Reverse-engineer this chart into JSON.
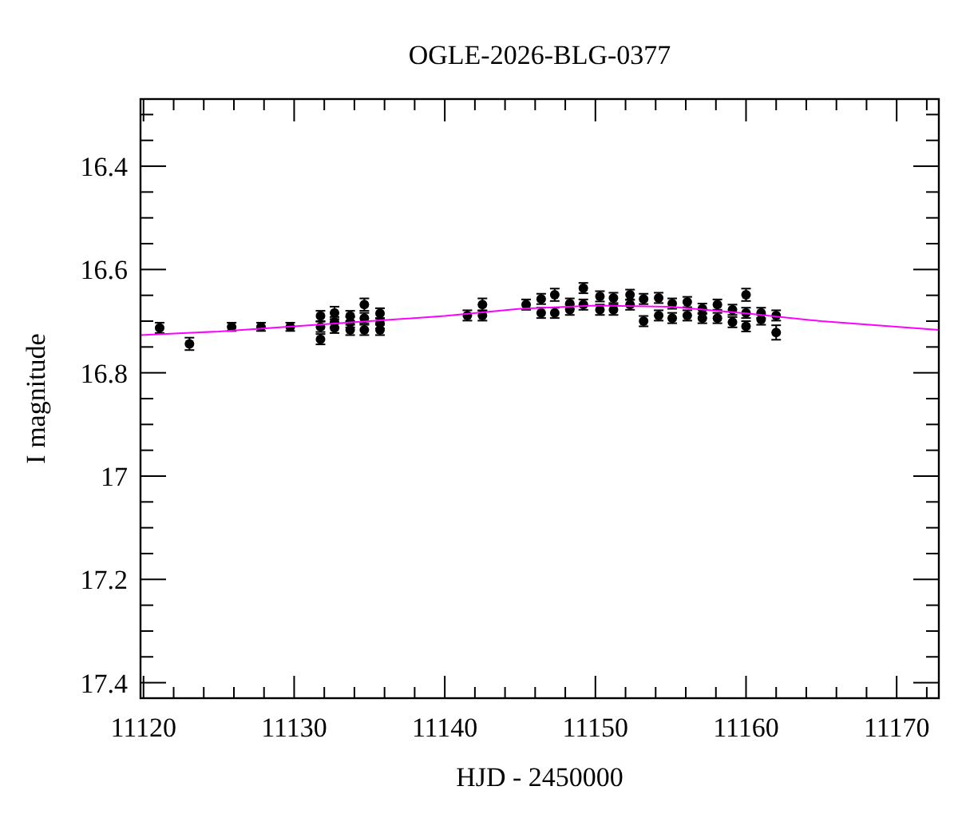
{
  "chart_data": {
    "type": "scatter",
    "title": "OGLE-2026-BLG-0377",
    "xlabel": "HJD - 2450000",
    "ylabel": "I magnitude",
    "xlim": [
      11119.8,
      11172.8
    ],
    "ylim": [
      17.43,
      16.27
    ],
    "xticks": [
      11120,
      {
        "value": 11122,
        "label": null
      },
      {
        "value": 11124,
        "label": null
      },
      {
        "value": 11126,
        "label": null
      },
      {
        "value": 11128,
        "label": null
      },
      11130,
      {
        "value": 11132,
        "label": null
      },
      {
        "value": 11134,
        "label": null
      },
      {
        "value": 11136,
        "label": null
      },
      {
        "value": 11138,
        "label": null
      },
      11140,
      {
        "value": 11142,
        "label": null
      },
      {
        "value": 11144,
        "label": null
      },
      {
        "value": 11146,
        "label": null
      },
      {
        "value": 11148,
        "label": null
      },
      11150,
      {
        "value": 11152,
        "label": null
      },
      {
        "value": 11154,
        "label": null
      },
      {
        "value": 11156,
        "label": null
      },
      {
        "value": 11158,
        "label": null
      },
      11160,
      {
        "value": 11162,
        "label": null
      },
      {
        "value": 11164,
        "label": null
      },
      {
        "value": 11166,
        "label": null
      },
      {
        "value": 11168,
        "label": null
      },
      11170,
      {
        "value": 11172,
        "label": null
      }
    ],
    "yticks": [
      {
        "value": 16.3,
        "label": null
      },
      {
        "value": 16.35,
        "label": null
      },
      16.4,
      {
        "value": 16.45,
        "label": null
      },
      {
        "value": 16.5,
        "label": null
      },
      {
        "value": 16.55,
        "label": null
      },
      16.6,
      {
        "value": 16.65,
        "label": null
      },
      {
        "value": 16.7,
        "label": null
      },
      {
        "value": 16.75,
        "label": null
      },
      16.8,
      {
        "value": 16.85,
        "label": null
      },
      {
        "value": 16.9,
        "label": null
      },
      {
        "value": 16.95,
        "label": null
      },
      17,
      {
        "value": 17.05,
        "label": null
      },
      {
        "value": 17.1,
        "label": null
      },
      {
        "value": 17.15,
        "label": null
      },
      17.2,
      {
        "value": 17.25,
        "label": null
      },
      {
        "value": 17.3,
        "label": null
      },
      {
        "value": 17.35,
        "label": null
      },
      17.4
    ],
    "grid": false,
    "marker": "circle",
    "series": [
      {
        "color": "#000000",
        "x": [
          11121.07,
          11123.05,
          11125.85,
          11127.8,
          11129.74,
          11131.75,
          11131.75,
          11131.75,
          11132.68,
          11132.68,
          11132.68,
          11133.72,
          11133.72,
          11133.72,
          11134.66,
          11134.66,
          11134.66,
          11135.7,
          11135.7,
          11135.7,
          11141.5,
          11142.5,
          11142.5,
          11145.4,
          11146.4,
          11146.4,
          11147.3,
          11147.3,
          11148.3,
          11148.3,
          11149.2,
          11149.2,
          11150.3,
          11150.3,
          11151.2,
          11151.2,
          11152.3,
          11152.3,
          11153.2,
          11153.2,
          11154.2,
          11154.2,
          11155.1,
          11155.1,
          11156.1,
          11156.1,
          11157.1,
          11157.1,
          11158.1,
          11158.1,
          11159.1,
          11159.1,
          11160,
          11160,
          11160,
          11161,
          11161,
          11162,
          11162
        ],
        "values": [
          16.713,
          16.744,
          16.711,
          16.711,
          16.711,
          16.69,
          16.711,
          16.735,
          16.684,
          16.702,
          16.713,
          16.69,
          16.702,
          16.717,
          16.668,
          16.694,
          16.717,
          16.685,
          16.704,
          16.717,
          16.689,
          16.668,
          16.689,
          16.668,
          16.657,
          16.684,
          16.649,
          16.684,
          16.666,
          16.678,
          16.636,
          16.668,
          16.652,
          16.678,
          16.655,
          16.678,
          16.649,
          16.668,
          16.657,
          16.7,
          16.655,
          16.689,
          16.666,
          16.694,
          16.663,
          16.689,
          16.676,
          16.694,
          16.668,
          16.694,
          16.678,
          16.702,
          16.649,
          16.684,
          16.71,
          16.684,
          16.697,
          16.689,
          16.722
        ],
        "errors": [
          0.01,
          0.012,
          0.008,
          0.008,
          0.008,
          0.01,
          0.01,
          0.01,
          0.012,
          0.01,
          0.01,
          0.01,
          0.01,
          0.01,
          0.012,
          0.01,
          0.01,
          0.01,
          0.01,
          0.01,
          0.01,
          0.012,
          0.01,
          0.01,
          0.01,
          0.01,
          0.012,
          0.01,
          0.01,
          0.01,
          0.01,
          0.01,
          0.01,
          0.01,
          0.01,
          0.01,
          0.01,
          0.01,
          0.01,
          0.01,
          0.01,
          0.01,
          0.01,
          0.01,
          0.01,
          0.01,
          0.01,
          0.01,
          0.01,
          0.01,
          0.01,
          0.01,
          0.012,
          0.01,
          0.01,
          0.01,
          0.01,
          0.01,
          0.014
        ]
      },
      {
        "type": "line",
        "color": "#ff00ff",
        "marker": "none",
        "x": [
          11119.8,
          11125,
          11130,
          11135,
          11140,
          11145,
          11150,
          11155,
          11160,
          11165,
          11172.8
        ],
        "values": [
          16.727,
          16.72,
          16.71,
          16.7,
          16.69,
          16.676,
          16.67,
          16.672,
          16.685,
          16.7,
          16.717
        ]
      }
    ]
  }
}
